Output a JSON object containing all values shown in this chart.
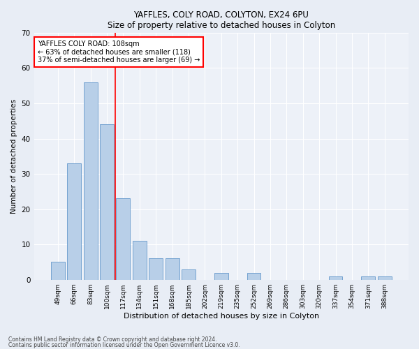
{
  "title1": "YAFFLES, COLY ROAD, COLYTON, EX24 6PU",
  "title2": "Size of property relative to detached houses in Colyton",
  "xlabel": "Distribution of detached houses by size in Colyton",
  "ylabel": "Number of detached properties",
  "categories": [
    "49sqm",
    "66sqm",
    "83sqm",
    "100sqm",
    "117sqm",
    "134sqm",
    "151sqm",
    "168sqm",
    "185sqm",
    "202sqm",
    "219sqm",
    "235sqm",
    "252sqm",
    "269sqm",
    "286sqm",
    "303sqm",
    "320sqm",
    "337sqm",
    "354sqm",
    "371sqm",
    "388sqm"
  ],
  "values": [
    5,
    33,
    56,
    44,
    23,
    11,
    6,
    6,
    3,
    0,
    2,
    0,
    2,
    0,
    0,
    0,
    0,
    1,
    0,
    1,
    1
  ],
  "bar_color": "#b8cfe8",
  "bar_edgecolor": "#6699cc",
  "redline_x": 3.5,
  "annotation_text": "YAFFLES COLY ROAD: 108sqm\n← 63% of detached houses are smaller (118)\n37% of semi-detached houses are larger (69) →",
  "annotation_box_color": "white",
  "annotation_box_edgecolor": "red",
  "redline_color": "red",
  "ylim": [
    0,
    70
  ],
  "yticks": [
    0,
    10,
    20,
    30,
    40,
    50,
    60,
    70
  ],
  "footer1": "Contains HM Land Registry data © Crown copyright and database right 2024.",
  "footer2": "Contains public sector information licensed under the Open Government Licence v3.0.",
  "background_color": "#e8edf5",
  "plot_background": "#edf1f8"
}
